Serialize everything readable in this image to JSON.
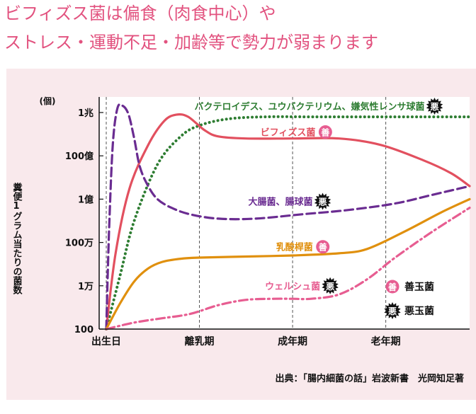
{
  "headline": {
    "line1": "ビフィズス菌は偏食（肉食中心）や",
    "line2": "ストレス・運動不足・加齢等で勢力が弱まります"
  },
  "colors": {
    "bifidus": "#e2505f",
    "bacteroides": "#2e7d32",
    "ecoli": "#6a2c91",
    "lactobacillus": "#e0900e",
    "welchii": "#e75d91",
    "panel": "#f9e9ec"
  },
  "chart_data": {
    "type": "line",
    "yunit": "(個)",
    "ylabel": "糞便1グラム当たりの菌数",
    "y_ticks": [
      "1兆",
      "100億",
      "1億",
      "100万",
      "1万",
      "100"
    ],
    "y_log10": [
      12,
      10,
      8,
      6,
      4,
      2
    ],
    "ylim": [
      2,
      12.5
    ],
    "x_ticks": [
      "出生日",
      "離乳期",
      "成年期",
      "老年期"
    ],
    "x_tick_pos": [
      0,
      1,
      2,
      3
    ],
    "xlim": [
      0,
      3.9
    ],
    "source": "出典：「腸内細菌の話」岩波新書　光岡知足著",
    "legend": [
      {
        "badge": "善",
        "label": "善玉菌"
      },
      {
        "badge": "悪",
        "label": "悪玉菌"
      }
    ],
    "series": [
      {
        "key": "bacteroides",
        "name": "バクテロイデス、ユウバクテリウム、嫌気性レンサ球菌",
        "badge": "悪",
        "style": "dotted",
        "x": [
          0,
          0.15,
          0.3,
          0.55,
          0.8,
          1.0,
          1.3,
          1.7,
          2.2,
          2.8,
          3.4,
          3.9
        ],
        "y": [
          2,
          4.5,
          7,
          9.6,
          10.9,
          11.4,
          11.7,
          11.8,
          11.8,
          11.8,
          11.8,
          11.8
        ]
      },
      {
        "key": "bifidus",
        "name": "ビフィズス菌",
        "badge": "善",
        "style": "solid",
        "x": [
          0,
          0.1,
          0.25,
          0.45,
          0.62,
          0.75,
          0.88,
          1.05,
          1.2,
          1.5,
          2.0,
          2.5,
          2.95,
          3.4,
          3.7,
          3.9
        ],
        "y": [
          2,
          5.5,
          8.5,
          10.5,
          11.6,
          11.9,
          11.8,
          11.2,
          10.9,
          10.8,
          10.8,
          10.8,
          10.5,
          9.8,
          9.2,
          8.6
        ],
        "label_at": [
          1.95,
          11.1
        ]
      },
      {
        "key": "ecoli",
        "name": "大腸菌、腸球菌",
        "badge": "悪",
        "style": "dashed",
        "x": [
          0,
          0.03,
          0.07,
          0.12,
          0.18,
          0.24,
          0.3,
          0.36,
          0.45,
          0.55,
          0.7,
          0.9,
          1.2,
          1.6,
          2.1,
          2.6,
          3.1,
          3.5,
          3.9
        ],
        "y": [
          2,
          6.5,
          10.5,
          12.2,
          12.3,
          11.9,
          10.8,
          9.5,
          8.6,
          8.0,
          7.6,
          7.3,
          7.1,
          7.1,
          7.3,
          7.5,
          7.8,
          8.2,
          8.6
        ],
        "label_at": [
          1.87,
          7.9
        ]
      },
      {
        "key": "lactobacillus",
        "name": "乳酸桿菌",
        "badge": "善",
        "style": "solid",
        "x": [
          0,
          0.15,
          0.3,
          0.45,
          0.6,
          0.8,
          1.0,
          1.5,
          2.0,
          2.5,
          2.8,
          3.2,
          3.6,
          3.9
        ],
        "y": [
          2,
          3.2,
          4.2,
          4.8,
          5.1,
          5.25,
          5.3,
          5.35,
          5.4,
          5.5,
          5.7,
          6.5,
          7.4,
          8.0
        ],
        "label_at": [
          2.02,
          5.8
        ]
      },
      {
        "key": "welchii",
        "name": "ウェルシュ菌",
        "badge": "悪",
        "style": "dashdot",
        "x": [
          0,
          0.3,
          0.6,
          0.9,
          1.2,
          1.5,
          1.8,
          2.0,
          2.2,
          2.5,
          2.8,
          3.1,
          3.5,
          3.9
        ],
        "y": [
          2,
          2.3,
          2.5,
          2.7,
          3.1,
          3.35,
          3.4,
          3.4,
          3.4,
          3.6,
          4.3,
          5.3,
          6.5,
          7.6
        ],
        "label_at": [
          2.0,
          4.0
        ]
      }
    ]
  }
}
